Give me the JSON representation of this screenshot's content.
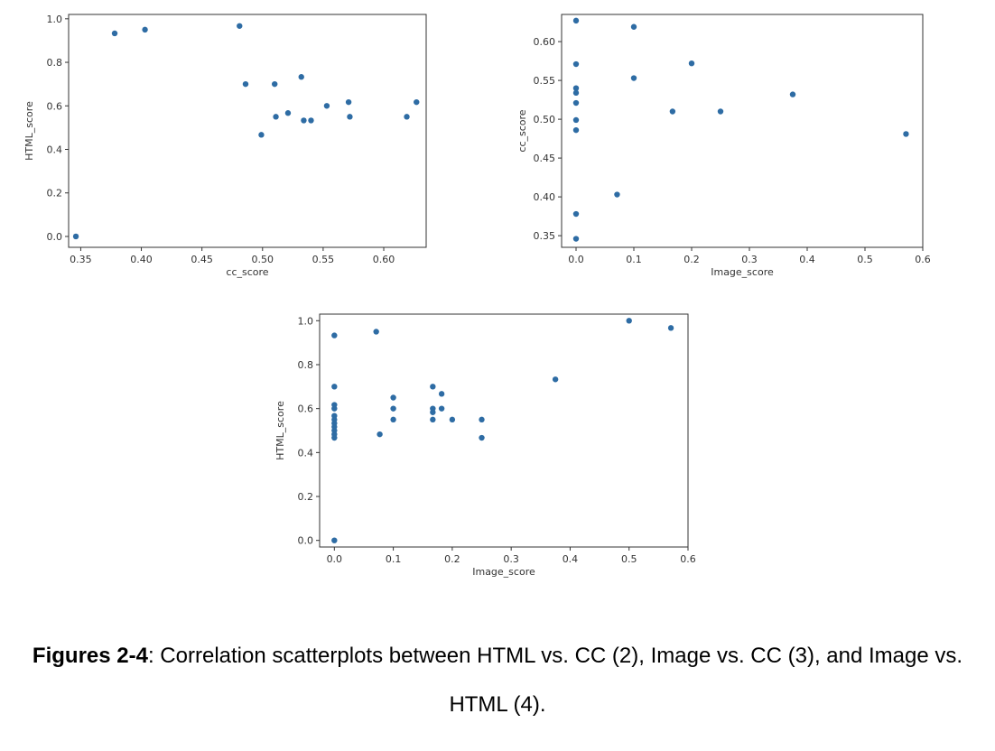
{
  "colors": {
    "point": "#2e6ca4",
    "frame": "#333333"
  },
  "chart_data": [
    {
      "type": "scatter",
      "xlabel": "cc_score",
      "ylabel": "HTML_score",
      "xlim": [
        0.34,
        0.635
      ],
      "ylim": [
        -0.05,
        1.02
      ],
      "xticks": [
        "0.35",
        "0.40",
        "0.45",
        "0.50",
        "0.55",
        "0.60"
      ],
      "yticks": [
        "0.0",
        "0.2",
        "0.4",
        "0.6",
        "0.8",
        "1.0"
      ],
      "points": [
        {
          "x": 0.346,
          "y": 0.0
        },
        {
          "x": 0.378,
          "y": 0.933
        },
        {
          "x": 0.403,
          "y": 0.95
        },
        {
          "x": 0.481,
          "y": 0.967
        },
        {
          "x": 0.486,
          "y": 0.7
        },
        {
          "x": 0.499,
          "y": 0.467
        },
        {
          "x": 0.51,
          "y": 0.7
        },
        {
          "x": 0.511,
          "y": 0.55
        },
        {
          "x": 0.521,
          "y": 0.567
        },
        {
          "x": 0.532,
          "y": 0.733
        },
        {
          "x": 0.534,
          "y": 0.533
        },
        {
          "x": 0.54,
          "y": 0.533
        },
        {
          "x": 0.553,
          "y": 0.6
        },
        {
          "x": 0.571,
          "y": 0.617
        },
        {
          "x": 0.572,
          "y": 0.55
        },
        {
          "x": 0.619,
          "y": 0.55
        },
        {
          "x": 0.627,
          "y": 0.617
        }
      ]
    },
    {
      "type": "scatter",
      "xlabel": "Image_score",
      "ylabel": "cc_score",
      "xlim": [
        -0.025,
        0.6
      ],
      "ylim": [
        0.335,
        0.635
      ],
      "xticks": [
        "0.0",
        "0.1",
        "0.2",
        "0.3",
        "0.4",
        "0.5",
        "0.6"
      ],
      "yticks": [
        "0.35",
        "0.40",
        "0.45",
        "0.50",
        "0.55",
        "0.60"
      ],
      "points": [
        {
          "x": 0.0,
          "y": 0.627
        },
        {
          "x": 0.0,
          "y": 0.571
        },
        {
          "x": 0.0,
          "y": 0.54
        },
        {
          "x": 0.0,
          "y": 0.534
        },
        {
          "x": 0.0,
          "y": 0.521
        },
        {
          "x": 0.0,
          "y": 0.499
        },
        {
          "x": 0.0,
          "y": 0.486
        },
        {
          "x": 0.0,
          "y": 0.378
        },
        {
          "x": 0.0,
          "y": 0.346
        },
        {
          "x": 0.071,
          "y": 0.403
        },
        {
          "x": 0.1,
          "y": 0.619
        },
        {
          "x": 0.1,
          "y": 0.553
        },
        {
          "x": 0.167,
          "y": 0.51
        },
        {
          "x": 0.2,
          "y": 0.572
        },
        {
          "x": 0.25,
          "y": 0.51
        },
        {
          "x": 0.375,
          "y": 0.532
        },
        {
          "x": 0.571,
          "y": 0.481
        }
      ]
    },
    {
      "type": "scatter",
      "xlabel": "Image_score",
      "ylabel": "HTML_score",
      "xlim": [
        -0.025,
        0.6
      ],
      "ylim": [
        -0.03,
        1.03
      ],
      "xticks": [
        "0.0",
        "0.1",
        "0.2",
        "0.3",
        "0.4",
        "0.5",
        "0.6"
      ],
      "yticks": [
        "0.0",
        "0.2",
        "0.4",
        "0.6",
        "0.8",
        "1.0"
      ],
      "points": [
        {
          "x": 0.0,
          "y": 0.0
        },
        {
          "x": 0.0,
          "y": 0.467
        },
        {
          "x": 0.0,
          "y": 0.483
        },
        {
          "x": 0.0,
          "y": 0.5
        },
        {
          "x": 0.0,
          "y": 0.517
        },
        {
          "x": 0.0,
          "y": 0.533
        },
        {
          "x": 0.0,
          "y": 0.55
        },
        {
          "x": 0.0,
          "y": 0.567
        },
        {
          "x": 0.0,
          "y": 0.6
        },
        {
          "x": 0.0,
          "y": 0.617
        },
        {
          "x": 0.0,
          "y": 0.7
        },
        {
          "x": 0.0,
          "y": 0.933
        },
        {
          "x": 0.071,
          "y": 0.95
        },
        {
          "x": 0.077,
          "y": 0.483
        },
        {
          "x": 0.1,
          "y": 0.55
        },
        {
          "x": 0.1,
          "y": 0.6
        },
        {
          "x": 0.1,
          "y": 0.65
        },
        {
          "x": 0.167,
          "y": 0.55
        },
        {
          "x": 0.167,
          "y": 0.583
        },
        {
          "x": 0.167,
          "y": 0.6
        },
        {
          "x": 0.167,
          "y": 0.7
        },
        {
          "x": 0.182,
          "y": 0.6
        },
        {
          "x": 0.182,
          "y": 0.667
        },
        {
          "x": 0.2,
          "y": 0.55
        },
        {
          "x": 0.25,
          "y": 0.467
        },
        {
          "x": 0.25,
          "y": 0.55
        },
        {
          "x": 0.375,
          "y": 0.733
        },
        {
          "x": 0.5,
          "y": 1.0
        },
        {
          "x": 0.571,
          "y": 0.967
        }
      ]
    }
  ],
  "caption": {
    "bold": "Figures 2-4",
    "text": ": Correlation scatterplots between HTML vs. CC (2), Image vs. CC (3), and Image vs. HTML (4)."
  }
}
